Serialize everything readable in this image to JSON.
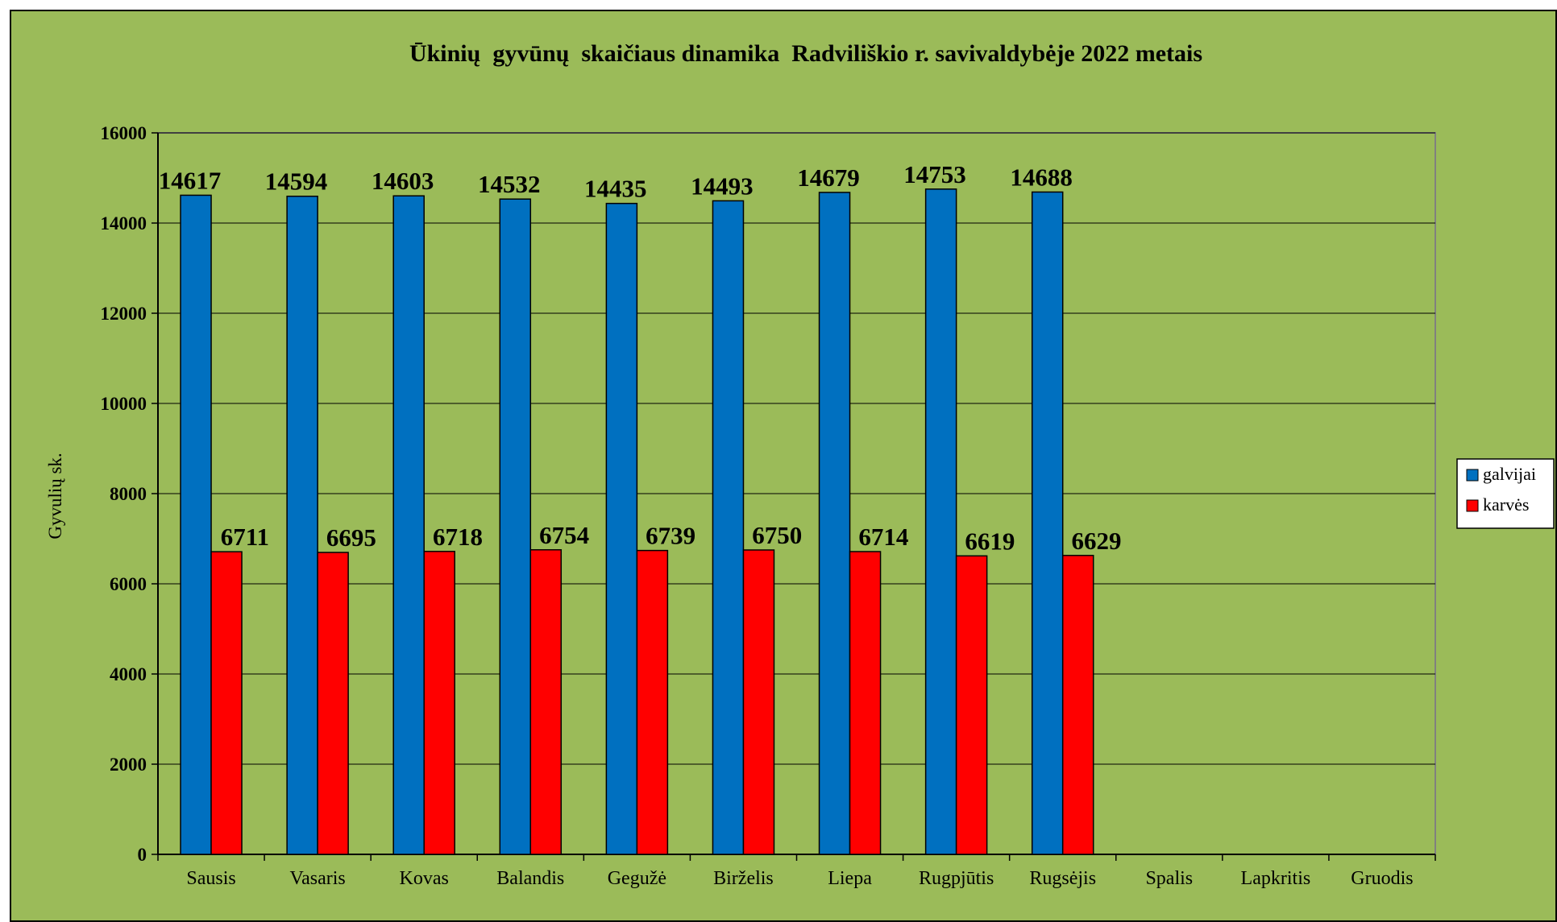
{
  "chart_data": {
    "type": "bar",
    "title": "Ūkinių  gyvūnų  skaičiaus dinamika  Radviliškio r. savivaldybėje 2022 metais",
    "ylabel": "Gyvulių sk.",
    "xlabel": "",
    "ylim": [
      0,
      16000
    ],
    "yticks": [
      0,
      2000,
      4000,
      6000,
      8000,
      10000,
      12000,
      14000,
      16000
    ],
    "grid": true,
    "legend_position": "right",
    "categories": [
      "Sausis",
      "Vasaris",
      "Kovas",
      "Balandis",
      "Gegužė",
      "Birželis",
      "Liepa",
      "Rugpjūtis",
      "Rugsėjis",
      "Spalis",
      "Lapkritis",
      "Gruodis"
    ],
    "series": [
      {
        "name": "galvijai",
        "color": "#0070c0",
        "values": [
          14617,
          14594,
          14603,
          14532,
          14435,
          14493,
          14679,
          14753,
          14688,
          null,
          null,
          null
        ]
      },
      {
        "name": "karvės",
        "color": "#ff0000",
        "values": [
          6711,
          6695,
          6718,
          6754,
          6739,
          6750,
          6714,
          6619,
          6629,
          null,
          null,
          null
        ]
      }
    ]
  }
}
